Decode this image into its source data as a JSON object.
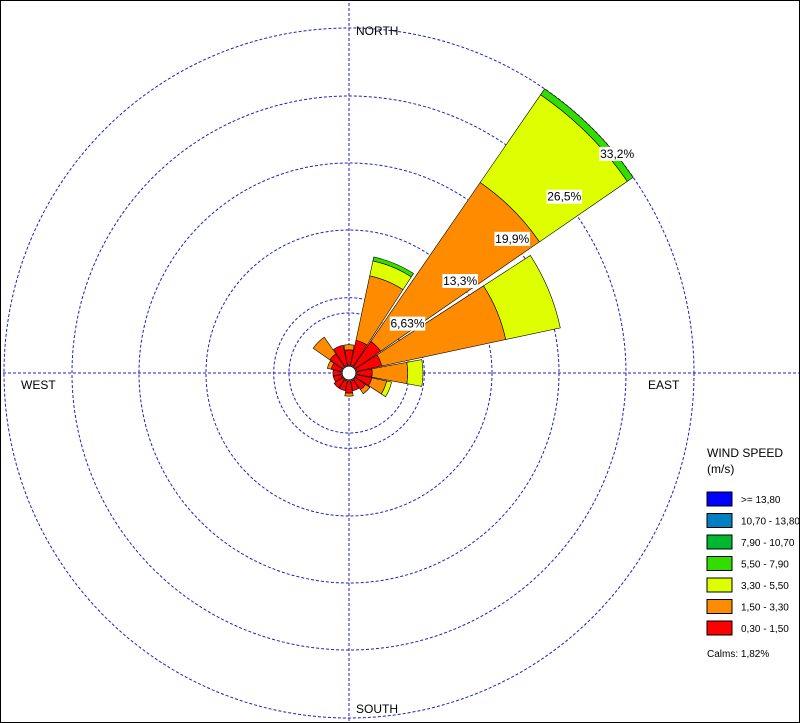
{
  "chart_data": {
    "type": "windrose",
    "directions": [
      "N",
      "NNE",
      "NE",
      "ENE",
      "E",
      "ESE",
      "SE",
      "SSE",
      "S",
      "SSW",
      "SW",
      "WSW",
      "W",
      "WNW",
      "NW",
      "NNW"
    ],
    "direction_labels": {
      "north": "NORTH",
      "east": "EAST",
      "south": "SOUTH",
      "west": "WEST"
    },
    "ring_values": [
      6.63,
      13.3,
      19.9,
      26.5,
      33.2
    ],
    "ring_labels": [
      "6,63%",
      "13,3%",
      "19,9%",
      "26,5%",
      "33,2%"
    ],
    "max_percent": 33.2,
    "calms_percent": 1.82,
    "series": [
      {
        "name": "0,30 - 1,50",
        "color": "#ff0000",
        "values": [
          1.5,
          2.5,
          3.0,
          2.5,
          1.5,
          1.5,
          1.2,
          1.0,
          1.2,
          1.0,
          1.0,
          0.8,
          0.8,
          1.0,
          1.5,
          2.0
        ]
      },
      {
        "name": "1,50 - 3,30",
        "color": "#ff8c00",
        "values": [
          0.5,
          6.5,
          19.0,
          12.5,
          3.5,
          1.5,
          0.5,
          0.0,
          0.3,
          0.0,
          0.0,
          0.0,
          0.0,
          0.4,
          2.0,
          0.0
        ]
      },
      {
        "name": "3,30 - 5,50",
        "color": "#ddff00",
        "values": [
          0.0,
          1.5,
          10.5,
          5.5,
          1.5,
          0.5,
          0.0,
          0.0,
          0.0,
          0.0,
          0.0,
          0.0,
          0.0,
          0.0,
          0.0,
          0.0
        ]
      },
      {
        "name": "5,50 - 7,90",
        "color": "#33dd00",
        "values": [
          0.0,
          0.4,
          0.7,
          0.0,
          0.0,
          0.0,
          0.0,
          0.0,
          0.0,
          0.0,
          0.0,
          0.0,
          0.0,
          0.0,
          0.0,
          0.0
        ]
      },
      {
        "name": "7,90 - 10,70",
        "color": "#00b830",
        "values": [
          0,
          0,
          0,
          0,
          0,
          0,
          0,
          0,
          0,
          0,
          0,
          0,
          0,
          0,
          0,
          0
        ]
      },
      {
        "name": "10,70 - 13,80",
        "color": "#0080c0",
        "values": [
          0,
          0,
          0,
          0,
          0,
          0,
          0,
          0,
          0,
          0,
          0,
          0,
          0,
          0,
          0,
          0
        ]
      },
      {
        "name": ">= 13,80",
        "color": "#0000ff",
        "values": [
          0,
          0,
          0,
          0,
          0,
          0,
          0,
          0,
          0,
          0,
          0,
          0,
          0,
          0,
          0,
          0
        ]
      }
    ],
    "legend": {
      "title_line1": "WIND SPEED",
      "title_line2": "(m/s)",
      "calms_text": "Calms: 1,82%",
      "placement": "right"
    }
  }
}
